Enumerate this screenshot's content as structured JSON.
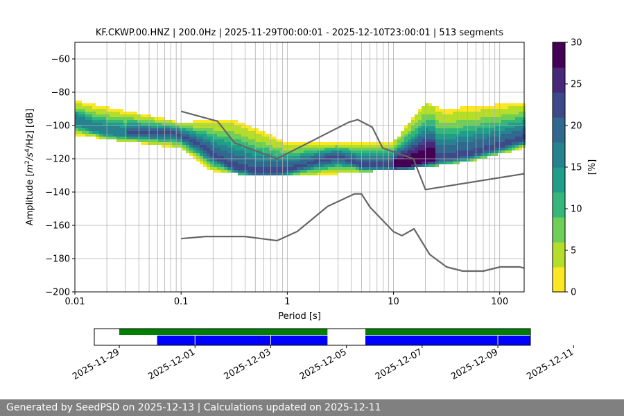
{
  "chart_data": [
    {
      "type": "heatmap",
      "title": "KF.CKWP.00.HNZ | 200.0Hz | 2025-11-29T00:00:01 - 2025-12-10T23:00:01 | 513 segments",
      "xlabel": "Period [s]",
      "ylabel_parts": [
        "Amplitude [",
        "m",
        "2",
        "/s",
        "4",
        "/Hz] [dB]"
      ],
      "xscale": "log",
      "xlim": [
        0.01,
        170
      ],
      "ylim": [
        -200,
        -50
      ],
      "x_ticks": [
        {
          "value": 0.01,
          "label": "0.01"
        },
        {
          "value": 0.1,
          "label": "0.1"
        },
        {
          "value": 1,
          "label": "1"
        },
        {
          "value": 10,
          "label": "10"
        },
        {
          "value": 100,
          "label": "100"
        }
      ],
      "y_ticks": [
        {
          "value": -60,
          "label": "−60"
        },
        {
          "value": -80,
          "label": "−80"
        },
        {
          "value": -100,
          "label": "−100"
        },
        {
          "value": -120,
          "label": "−120"
        },
        {
          "value": -140,
          "label": "−140"
        },
        {
          "value": -160,
          "label": "−160"
        },
        {
          "value": -180,
          "label": "−180"
        },
        {
          "value": -200,
          "label": "−200"
        }
      ],
      "grid": true,
      "colorbar": {
        "label": "[%]",
        "range": [
          0,
          30
        ],
        "ticks": [
          {
            "value": 0,
            "label": "0"
          },
          {
            "value": 5,
            "label": "5"
          },
          {
            "value": 10,
            "label": "10"
          },
          {
            "value": 15,
            "label": "15"
          },
          {
            "value": 20,
            "label": "20"
          },
          {
            "value": 25,
            "label": "25"
          },
          {
            "value": 30,
            "label": "30"
          }
        ],
        "colormap": [
          "#fde725",
          "#b5de2b",
          "#6ece58",
          "#35b779",
          "#1f9e89",
          "#26828e",
          "#31688e",
          "#3e4989",
          "#482878",
          "#440154"
        ]
      },
      "psd_mode": {
        "periods": [
          0.01,
          0.015,
          0.02,
          0.03,
          0.05,
          0.08,
          0.1,
          0.15,
          0.2,
          0.3,
          0.5,
          0.8,
          1,
          1.5,
          2,
          3,
          4,
          5,
          7,
          10,
          15,
          20,
          30,
          50,
          100,
          170
        ],
        "db": [
          -97,
          -102,
          -104,
          -105,
          -105,
          -104,
          -106,
          -112,
          -118,
          -125,
          -128,
          -128,
          -127,
          -124,
          -121,
          -119,
          -121,
          -124,
          -124,
          -124,
          -123,
          -121,
          -120,
          -118,
          -113,
          -108
        ]
      },
      "upper_spread": [
        {
          "period": 0.01,
          "db": -85
        },
        {
          "period": 0.1,
          "db": -98
        },
        {
          "period": 0.3,
          "db": -96
        },
        {
          "period": 1,
          "db": -110
        },
        {
          "period": 3,
          "db": -110
        },
        {
          "period": 10,
          "db": -110
        },
        {
          "period": 20,
          "db": -86
        },
        {
          "period": 30,
          "db": -90
        },
        {
          "period": 170,
          "db": -86
        }
      ],
      "lower_spread": [
        {
          "period": 0.01,
          "db": -106
        },
        {
          "period": 0.1,
          "db": -114
        },
        {
          "period": 0.2,
          "db": -128
        },
        {
          "period": 0.5,
          "db": -130
        },
        {
          "period": 2,
          "db": -130
        },
        {
          "period": 5,
          "db": -128
        },
        {
          "period": 15,
          "db": -126
        },
        {
          "period": 50,
          "db": -122
        },
        {
          "period": 170,
          "db": -114
        }
      ],
      "series": [
        {
          "name": "NHNM",
          "color": "#666666",
          "points": [
            [
              0.1,
              -91.5
            ],
            [
              0.22,
              -97.4
            ],
            [
              0.32,
              -110.5
            ],
            [
              0.8,
              -120
            ],
            [
              3.8,
              -98
            ],
            [
              4.6,
              -96.5
            ],
            [
              6.3,
              -101
            ],
            [
              7.9,
              -113.5
            ],
            [
              15.4,
              -120
            ],
            [
              20,
              -138.5
            ],
            [
              170,
              -129
            ]
          ]
        },
        {
          "name": "NLNM",
          "color": "#666666",
          "points": [
            [
              0.1,
              -168
            ],
            [
              0.17,
              -166.7
            ],
            [
              0.4,
              -166.7
            ],
            [
              0.8,
              -169.2
            ],
            [
              1.24,
              -163.7
            ],
            [
              2.4,
              -148.6
            ],
            [
              4.3,
              -141.1
            ],
            [
              5,
              -141.1
            ],
            [
              6,
              -149
            ],
            [
              10,
              -163.8
            ],
            [
              12,
              -166.2
            ],
            [
              15.6,
              -162.1
            ],
            [
              21.9,
              -177.5
            ],
            [
              31.6,
              -185
            ],
            [
              45,
              -187.5
            ],
            [
              70,
              -187.5
            ],
            [
              101,
              -185
            ],
            [
              154,
              -185
            ],
            [
              170,
              -185.7
            ]
          ]
        }
      ]
    },
    {
      "type": "timeline",
      "x_ticks": [
        {
          "date": "2025-11-29",
          "label": "2025-11-29"
        },
        {
          "date": "2025-12-01",
          "label": "2025-12-01"
        },
        {
          "date": "2025-12-03",
          "label": "2025-12-03"
        },
        {
          "date": "2025-12-05",
          "label": "2025-12-05"
        },
        {
          "date": "2025-12-07",
          "label": "2025-12-07"
        },
        {
          "date": "2025-12-09",
          "label": "2025-12-09"
        },
        {
          "date": "2025-12-11",
          "label": "2025-12-11"
        }
      ],
      "xlim_days": [
        -0.66,
        10.86
      ],
      "data_available": {
        "color": "#008000",
        "ranges_days": [
          [
            0,
            5.5
          ],
          [
            6.5,
            11.5
          ]
        ]
      },
      "psd_used": {
        "color": "#0000ff",
        "ranges_days": [
          [
            1,
            5.5
          ],
          [
            6.5,
            11.5
          ]
        ],
        "gaps_days": [
          2,
          4,
          10
        ]
      }
    }
  ],
  "footer": {
    "text": "Generated by SeedPSD on 2025-12-13 | Calculations updated on 2025-12-11"
  }
}
